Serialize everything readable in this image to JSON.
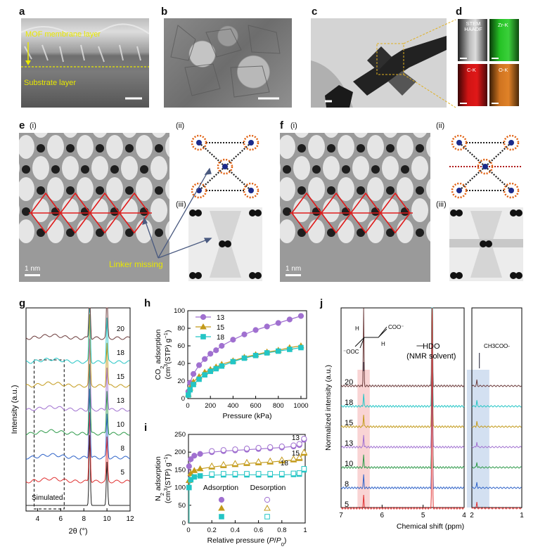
{
  "panels": {
    "a": {
      "label": "a",
      "mof_label": "MOF membrane layer",
      "substrate_label": "Substrate layer"
    },
    "b": {
      "label": "b"
    },
    "c": {
      "label": "c"
    },
    "d": {
      "label": "d",
      "maps": [
        "STEM HAADF",
        "Zr-K",
        "C-K",
        "O-K"
      ]
    },
    "e": {
      "label": "e",
      "sub_i": "(i)",
      "sub_ii": "(ii)",
      "sub_iii": "(iii)",
      "scale": "1 nm",
      "annotation": "Linker missing"
    },
    "f": {
      "label": "f",
      "sub_i": "(i)",
      "sub_ii": "(ii)",
      "sub_iii": "(iii)",
      "scale": "1 nm"
    },
    "g": {
      "label": "g"
    },
    "h": {
      "label": "h"
    },
    "i": {
      "label": "i"
    },
    "j": {
      "label": "j"
    }
  },
  "chart_data": [
    {
      "id": "g",
      "type": "line",
      "title": "",
      "xlabel": "2θ (°)",
      "ylabel": "Intensity (a.u.)",
      "xlim": [
        3,
        12
      ],
      "xticks": [
        4,
        6,
        8,
        10,
        12
      ],
      "series": [
        {
          "name": "Simulated",
          "color": "#222222"
        },
        {
          "name": "5",
          "color": "#e03030"
        },
        {
          "name": "8",
          "color": "#2f63c8"
        },
        {
          "name": "10",
          "color": "#2e9a4a"
        },
        {
          "name": "13",
          "color": "#a070d0"
        },
        {
          "name": "15",
          "color": "#c39a1a"
        },
        {
          "name": "18",
          "color": "#23c5c5"
        },
        {
          "name": "20",
          "color": "#6b3a3a"
        }
      ],
      "peaks": [
        8.5,
        10.0
      ]
    },
    {
      "id": "h",
      "type": "line",
      "xlabel": "Pressure (kPa)",
      "ylabel": "CO2 adsorption (cm3(STP) g-1)",
      "ylabel_line1": "CO",
      "ylabel_line2": "(cm",
      "xlim": [
        0,
        1050
      ],
      "ylim": [
        0,
        100
      ],
      "xticks": [
        0,
        200,
        400,
        600,
        800,
        1000
      ],
      "yticks": [
        0,
        20,
        40,
        60,
        80,
        100
      ],
      "series": [
        {
          "name": "13",
          "color": "#a070d0",
          "marker": "circle",
          "x": [
            5,
            20,
            50,
            100,
            150,
            200,
            250,
            300,
            400,
            500,
            600,
            700,
            800,
            900,
            1000
          ],
          "y": [
            8,
            18,
            28,
            38,
            45,
            51,
            55,
            60,
            67,
            73,
            78,
            82,
            86,
            90,
            94
          ]
        },
        {
          "name": "15",
          "color": "#c39a1a",
          "marker": "triangle",
          "x": [
            5,
            20,
            50,
            100,
            150,
            200,
            250,
            300,
            400,
            500,
            600,
            700,
            800,
            900,
            1000
          ],
          "y": [
            5,
            12,
            19,
            25,
            30,
            33,
            36,
            39,
            43,
            47,
            50,
            53,
            55,
            58,
            60
          ]
        },
        {
          "name": "18",
          "color": "#23c5c5",
          "marker": "square",
          "x": [
            5,
            20,
            50,
            100,
            150,
            200,
            250,
            300,
            400,
            500,
            600,
            700,
            800,
            900,
            1000
          ],
          "y": [
            4,
            10,
            16,
            22,
            27,
            31,
            34,
            37,
            42,
            46,
            49,
            52,
            54,
            56,
            58
          ]
        }
      ]
    },
    {
      "id": "i",
      "type": "line",
      "xlabel": "Relative pressure (P/P0)",
      "xlabel_main": "Relative pressure (",
      "ylabel": "N2 adsorption (cm3(STP) g-1)",
      "xlim": [
        0,
        1.0
      ],
      "ylim": [
        0,
        250
      ],
      "xticks": [
        0,
        0.2,
        0.4,
        0.6,
        0.8,
        1.0
      ],
      "yticks": [
        0,
        50,
        100,
        150,
        200,
        250
      ],
      "legend": {
        "adsorption": "Adsorption",
        "desorption": "Desorption"
      },
      "series": [
        {
          "name": "13",
          "color": "#a070d0",
          "x": [
            0.005,
            0.02,
            0.05,
            0.1,
            0.2,
            0.3,
            0.4,
            0.5,
            0.6,
            0.7,
            0.8,
            0.9,
            0.95,
            0.99
          ],
          "adsorption": [
            160,
            180,
            190,
            195,
            200,
            203,
            205,
            207,
            209,
            211,
            213,
            216,
            220,
            235
          ]
        },
        {
          "name": "15",
          "color": "#c39a1a",
          "x": [
            0.005,
            0.02,
            0.05,
            0.1,
            0.2,
            0.3,
            0.4,
            0.5,
            0.6,
            0.7,
            0.8,
            0.9,
            0.95,
            0.99
          ],
          "adsorption": [
            120,
            140,
            148,
            153,
            158,
            162,
            165,
            168,
            170,
            172,
            175,
            178,
            182,
            197
          ]
        },
        {
          "name": "18",
          "color": "#23c5c5",
          "x": [
            0.005,
            0.02,
            0.05,
            0.1,
            0.2,
            0.3,
            0.4,
            0.5,
            0.6,
            0.7,
            0.8,
            0.9,
            0.95,
            0.99
          ],
          "adsorption": [
            100,
            122,
            130,
            133,
            135,
            136,
            136,
            136,
            136,
            136,
            136,
            137,
            138,
            150
          ]
        }
      ]
    },
    {
      "id": "j",
      "type": "line",
      "xlabel": "Chemical shift (ppm)",
      "ylabel": "Normalized intensity (a.u.)",
      "xlim_left": [
        7,
        4
      ],
      "xlim_right": [
        2,
        1
      ],
      "xticks_left": [
        7,
        6,
        5,
        4
      ],
      "xticks_right": [
        2,
        1
      ],
      "annotations": {
        "hdo": "HDO",
        "nmr": "(NMR solvent)",
        "acetate": "CH3COO-"
      },
      "series": [
        {
          "name": "20",
          "color": "#6b3a3a"
        },
        {
          "name": "18",
          "color": "#23c5c5"
        },
        {
          "name": "15",
          "color": "#c39a1a"
        },
        {
          "name": "13",
          "color": "#a070d0"
        },
        {
          "name": "10",
          "color": "#2e9a4a"
        },
        {
          "name": "8",
          "color": "#2f63c8"
        },
        {
          "name": "5",
          "color": "#e03030"
        }
      ]
    }
  ]
}
